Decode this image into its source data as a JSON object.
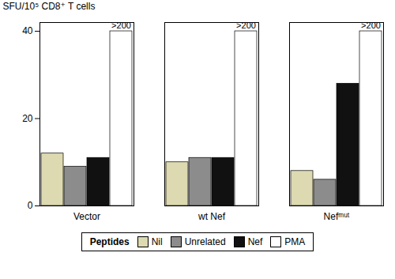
{
  "chart_data": {
    "type": "bar",
    "categories": [
      "Vector",
      "wt Nef",
      "Nefᵐᵘᵗ"
    ],
    "series": [
      {
        "name": "Nil",
        "color": "#ddd9b0",
        "values": [
          12,
          10,
          8
        ]
      },
      {
        "name": "Unrelated",
        "color": "#8c8c8c",
        "values": [
          9,
          11,
          6
        ]
      },
      {
        "name": "Nef",
        "color": "#111111",
        "values": [
          11,
          11,
          28
        ]
      },
      {
        "name": "PMA",
        "color": "#ffffff",
        "values": [
          40,
          40,
          40
        ]
      }
    ],
    "ylabel": "SFU/10⁵ CD8⁺ T cells",
    "ylim": [
      0,
      42
    ],
    "yticks": [
      0,
      20,
      40
    ],
    "grid": false,
    "legend": "bottom",
    "legend_title": "Peptides",
    "annotations": [
      {
        "text": ">200",
        "category": "Vector",
        "series": "PMA"
      },
      {
        "text": ">200",
        "category": "wt Nef",
        "series": "PMA"
      },
      {
        "text": ">200",
        "category": "Nefᵐᵘᵗ",
        "series": "PMA"
      }
    ]
  }
}
